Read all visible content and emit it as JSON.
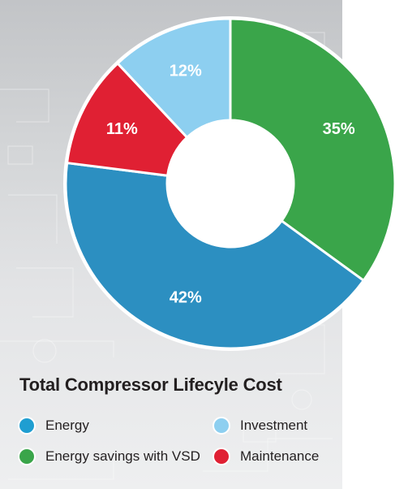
{
  "chart_data": {
    "type": "pie",
    "title": "Total Compressor Lifecyle Cost",
    "slices": [
      {
        "label": "Energy savings with VSD",
        "value": 35,
        "display": "35%",
        "color": "#3aa54a"
      },
      {
        "label": "Energy",
        "value": 42,
        "display": "42%",
        "color": "#2c8fc1"
      },
      {
        "label": "Maintenance",
        "value": 11,
        "display": "11%",
        "color": "#e02033"
      },
      {
        "label": "Investment",
        "value": 12,
        "display": "12%",
        "color": "#8dcff0"
      }
    ],
    "donut": true,
    "legend": {
      "placement": "bottom",
      "items": [
        {
          "label": "Energy",
          "color": "#1f9ed1"
        },
        {
          "label": "Investment",
          "color": "#8dcff0"
        },
        {
          "label": "Energy savings with VSD",
          "color": "#3aa54a"
        },
        {
          "label": "Maintenance",
          "color": "#e02033"
        }
      ]
    }
  }
}
